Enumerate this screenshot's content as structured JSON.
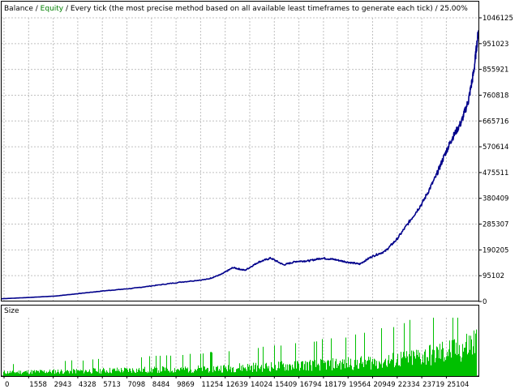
{
  "header": {
    "balance_label": "Balance",
    "sep1": " / ",
    "equity_label": "Equity",
    "rest": " / Every tick (the most precise method based on all available least timeframes to generate each tick) / 25.00%"
  },
  "subpanel": {
    "label": "Size"
  },
  "colors": {
    "balance": "#00008B",
    "equity": "#008000",
    "volume": "#00C000",
    "grid": "#C0C0C0",
    "frame": "#000000",
    "background": "#FFFFFF"
  },
  "chart_data": [
    {
      "type": "line",
      "series": [
        {
          "name": "Balance",
          "x": [
            0,
            1558,
            2943,
            4328,
            5713,
            7098,
            8484,
            9869,
            11254,
            12000,
            12639,
            13300,
            14024,
            14700,
            15409,
            16100,
            16794,
            17500,
            18179,
            18900,
            19564,
            20200,
            20949,
            21600,
            22334,
            23000,
            23719,
            24200,
            24600,
            25104,
            25500,
            25800,
            26050
          ],
          "values": [
            10000,
            15000,
            20000,
            30000,
            40000,
            48000,
            60000,
            72000,
            82000,
            100000,
            125000,
            115000,
            145000,
            160000,
            135000,
            148000,
            150000,
            160000,
            155000,
            145000,
            138000,
            165000,
            185000,
            230000,
            300000,
            365000,
            460000,
            540000,
            600000,
            660000,
            740000,
            850000,
            1000000
          ]
        }
      ],
      "y_ticks": [
        "1046125",
        "951023",
        "855921",
        "760818",
        "665716",
        "570614",
        "475511",
        "380409",
        "285307",
        "190205",
        "95102",
        "0"
      ],
      "ylim": [
        0,
        1046125
      ],
      "grid": true
    },
    {
      "type": "bar",
      "title": "Size",
      "volume_profile": {
        "x": [
          0,
          1558,
          2943,
          4328,
          5713,
          7098,
          8484,
          9869,
          11254,
          12639,
          14024,
          15409,
          16794,
          18179,
          19564,
          20949,
          22334,
          23719,
          25104,
          26050
        ],
        "values": [
          0.8,
          0.9,
          1.0,
          1.1,
          1.2,
          1.3,
          1.4,
          1.5,
          1.6,
          1.8,
          2.0,
          2.2,
          2.4,
          2.6,
          2.9,
          3.3,
          3.9,
          4.8,
          6.0,
          7.5
        ]
      },
      "ymax": 10,
      "x_ticks": [
        "0",
        "1558",
        "2943",
        "4328",
        "5713",
        "7098",
        "8484",
        "9869",
        "11254",
        "12639",
        "14024",
        "15409",
        "16794",
        "18179",
        "19564",
        "20949",
        "22334",
        "23719",
        "25104"
      ],
      "grid": true
    }
  ]
}
